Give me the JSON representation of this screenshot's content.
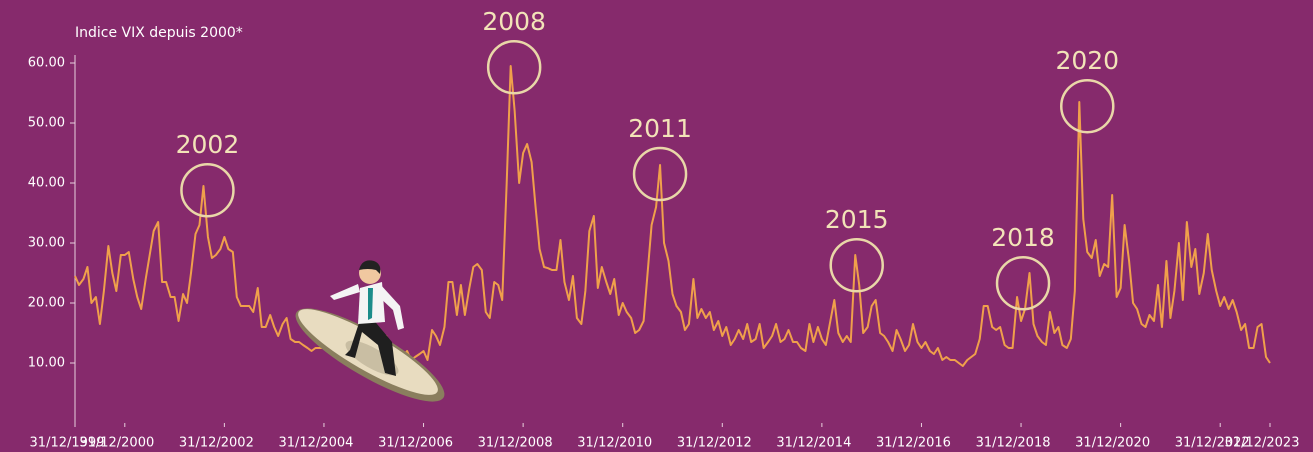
{
  "chart_data": {
    "type": "line",
    "title": "Indice VIX depuis 2000*",
    "color": "#f0a04b",
    "xlim": [
      2000,
      2024
    ],
    "ylim": [
      0,
      60
    ],
    "xticks": [
      {
        "value": 2000,
        "label": "31/12/1999"
      },
      {
        "value": 2001,
        "label": "31/12/2000"
      },
      {
        "value": 2003,
        "label": "31/12/2002"
      },
      {
        "value": 2005,
        "label": "31/12/2004"
      },
      {
        "value": 2007,
        "label": "31/12/2006"
      },
      {
        "value": 2009,
        "label": "31/12/2008"
      },
      {
        "value": 2011,
        "label": "31/12/2010"
      },
      {
        "value": 2013,
        "label": "31/12/2012"
      },
      {
        "value": 2015,
        "label": "31/12/2014"
      },
      {
        "value": 2017,
        "label": "31/12/2016"
      },
      {
        "value": 2019,
        "label": "31/12/2018"
      },
      {
        "value": 2021,
        "label": "31/12/2020"
      },
      {
        "value": 2023,
        "label": "31/12/2022"
      },
      {
        "value": 2024,
        "label": "31/12/2023"
      }
    ],
    "yticks": [
      {
        "value": 10,
        "label": "10.00"
      },
      {
        "value": 20,
        "label": "20.00"
      },
      {
        "value": 30,
        "label": "30.00"
      },
      {
        "value": 40,
        "label": "40.00"
      },
      {
        "value": 50,
        "label": "50.00"
      },
      {
        "value": 60,
        "label": "60.00"
      }
    ],
    "annotations": [
      {
        "text": "2002",
        "x": 2002.66,
        "y": 38.8
      },
      {
        "text": "2008",
        "x": 2008.82,
        "y": 59.3
      },
      {
        "text": "2011",
        "x": 2011.75,
        "y": 41.5
      },
      {
        "text": "2015",
        "x": 2015.7,
        "y": 26.3
      },
      {
        "text": "2018",
        "x": 2019.04,
        "y": 23.3
      },
      {
        "text": "2020",
        "x": 2020.33,
        "y": 52.8
      }
    ],
    "x": [
      2000,
      2000.08,
      2000.17,
      2000.25,
      2000.33,
      2000.42,
      2000.5,
      2000.58,
      2000.67,
      2000.75,
      2000.83,
      2000.92,
      2001,
      2001.08,
      2001.17,
      2001.25,
      2001.33,
      2001.42,
      2001.5,
      2001.58,
      2001.67,
      2001.75,
      2001.83,
      2001.92,
      2002,
      2002.08,
      2002.17,
      2002.25,
      2002.33,
      2002.42,
      2002.5,
      2002.58,
      2002.67,
      2002.75,
      2002.83,
      2002.92,
      2003,
      2003.08,
      2003.17,
      2003.25,
      2003.33,
      2003.42,
      2003.5,
      2003.58,
      2003.67,
      2003.75,
      2003.83,
      2003.92,
      2004,
      2004.08,
      2004.17,
      2004.25,
      2004.33,
      2004.42,
      2004.5,
      2004.58,
      2004.67,
      2004.75,
      2004.83,
      2004.92,
      2005,
      2005.08,
      2005.17,
      2005.25,
      2005.33,
      2005.42,
      2005.5,
      2005.58,
      2005.67,
      2005.75,
      2005.83,
      2005.92,
      2006,
      2006.08,
      2006.17,
      2006.25,
      2006.33,
      2006.42,
      2006.5,
      2006.58,
      2006.67,
      2006.75,
      2006.83,
      2006.92,
      2007,
      2007.08,
      2007.17,
      2007.25,
      2007.33,
      2007.42,
      2007.5,
      2007.58,
      2007.67,
      2007.75,
      2007.83,
      2007.92,
      2008,
      2008.08,
      2008.17,
      2008.25,
      2008.33,
      2008.42,
      2008.5,
      2008.58,
      2008.67,
      2008.75,
      2008.83,
      2008.92,
      2009,
      2009.08,
      2009.17,
      2009.25,
      2009.33,
      2009.42,
      2009.5,
      2009.58,
      2009.67,
      2009.75,
      2009.83,
      2009.92,
      2010,
      2010.08,
      2010.17,
      2010.25,
      2010.33,
      2010.42,
      2010.5,
      2010.58,
      2010.67,
      2010.75,
      2010.83,
      2010.92,
      2011,
      2011.08,
      2011.17,
      2011.25,
      2011.33,
      2011.42,
      2011.5,
      2011.58,
      2011.67,
      2011.75,
      2011.83,
      2011.92,
      2012,
      2012.08,
      2012.17,
      2012.25,
      2012.33,
      2012.42,
      2012.5,
      2012.58,
      2012.67,
      2012.75,
      2012.83,
      2012.92,
      2013,
      2013.08,
      2013.17,
      2013.25,
      2013.33,
      2013.42,
      2013.5,
      2013.58,
      2013.67,
      2013.75,
      2013.83,
      2013.92,
      2014,
      2014.08,
      2014.17,
      2014.25,
      2014.33,
      2014.42,
      2014.5,
      2014.58,
      2014.67,
      2014.75,
      2014.83,
      2014.92,
      2015,
      2015.08,
      2015.17,
      2015.25,
      2015.33,
      2015.42,
      2015.5,
      2015.58,
      2015.67,
      2015.75,
      2015.83,
      2015.92,
      2016,
      2016.08,
      2016.17,
      2016.25,
      2016.33,
      2016.42,
      2016.5,
      2016.58,
      2016.67,
      2016.75,
      2016.83,
      2016.92,
      2017,
      2017.08,
      2017.17,
      2017.25,
      2017.33,
      2017.42,
      2017.5,
      2017.58,
      2017.67,
      2017.75,
      2017.83,
      2017.92,
      2018,
      2018.08,
      2018.17,
      2018.25,
      2018.33,
      2018.42,
      2018.5,
      2018.58,
      2018.67,
      2018.75,
      2018.83,
      2018.92,
      2019,
      2019.08,
      2019.17,
      2019.25,
      2019.33,
      2019.42,
      2019.5,
      2019.58,
      2019.67,
      2019.75,
      2019.83,
      2019.92,
      2020,
      2020.08,
      2020.17,
      2020.25,
      2020.33,
      2020.42,
      2020.5,
      2020.58,
      2020.67,
      2020.75,
      2020.83,
      2020.92,
      2021,
      2021.08,
      2021.17,
      2021.25,
      2021.33,
      2021.42,
      2021.5,
      2021.58,
      2021.67,
      2021.75,
      2021.83,
      2021.92,
      2022,
      2022.08,
      2022.17,
      2022.25,
      2022.33,
      2022.42,
      2022.5,
      2022.58,
      2022.67,
      2022.75,
      2022.83,
      2022.92,
      2023,
      2023.08,
      2023.17,
      2023.25,
      2023.33,
      2023.42,
      2023.5,
      2023.58,
      2023.67,
      2023.75,
      2023.83,
      2023.92,
      2024
    ],
    "values": [
      24.5,
      23,
      24,
      26,
      20,
      21,
      16.5,
      22,
      29.5,
      25,
      22,
      28,
      28,
      28.5,
      24,
      21,
      19,
      24,
      28,
      32,
      33.5,
      23.5,
      23.5,
      21,
      21,
      17,
      21.5,
      20,
      25,
      31.5,
      33,
      39.5,
      31,
      27.5,
      28,
      29,
      31,
      29,
      28.5,
      21,
      19.5,
      19.5,
      19.5,
      18.5,
      22.5,
      16,
      16,
      18,
      16,
      14.5,
      16.5,
      17.5,
      14,
      13.5,
      13.5,
      13,
      12.5,
      12,
      12.5,
      12.5,
      12.5,
      13,
      13,
      13,
      13,
      13,
      13,
      13.5,
      14,
      14,
      14.5,
      15,
      15,
      14,
      13,
      14.5,
      12.5,
      12,
      11.5,
      11,
      12,
      10.5,
      11,
      11.5,
      12,
      10.5,
      15.5,
      14.5,
      13,
      16,
      23.5,
      23.5,
      18,
      23,
      18,
      22.5,
      26,
      26.5,
      25.5,
      18.5,
      17.5,
      23.5,
      23,
      20.5,
      40,
      59.5,
      52,
      40,
      45,
      46.5,
      43.5,
      36,
      29,
      26,
      25.8,
      25.5,
      25.5,
      30.5,
      23.5,
      20.5,
      24.5,
      17.5,
      16.5,
      22,
      32,
      34.5,
      22.5,
      26,
      23.5,
      21.5,
      24,
      18,
      20,
      18.5,
      17.5,
      15,
      15.5,
      17,
      25,
      33,
      36,
      43,
      30,
      27,
      21.5,
      19.5,
      18.5,
      15.5,
      16.5,
      24,
      17.5,
      19,
      17.5,
      18.5,
      15.5,
      17,
      14.5,
      16,
      13,
      14,
      15.5,
      14,
      16.5,
      13.5,
      14,
      16.5,
      12.5,
      13.5,
      14.5,
      16.5,
      13.5,
      14,
      15.5,
      13.5,
      13.5,
      12.5,
      12,
      16.5,
      13.5,
      16,
      14,
      13,
      17,
      20.5,
      15,
      13.5,
      14.5,
      13.5,
      28,
      23,
      15,
      16,
      19.5,
      20.5,
      15,
      14.5,
      13.5,
      12,
      15.5,
      14,
      12,
      13,
      16.5,
      13.5,
      12.5,
      13.5,
      12,
      11.5,
      12.5,
      10.5,
      11,
      10.5,
      10.5,
      10,
      9.5,
      10.5,
      11,
      11.5,
      14,
      19.5,
      19.5,
      16,
      15.5,
      16,
      13,
      12.5,
      12.5,
      21,
      17,
      19,
      25,
      16.5,
      14.5,
      13.5,
      13,
      18.5,
      15,
      16,
      13,
      12.5,
      14,
      22,
      53.5,
      34,
      28.5,
      27.5,
      30.5,
      24.5,
      26.5,
      26,
      38,
      21,
      22.5,
      33,
      27,
      20,
      19,
      16.5,
      16,
      18,
      17,
      23,
      16,
      27,
      17.5,
      22,
      30,
      20.5,
      33.5,
      26,
      29,
      21.5,
      25,
      31.5,
      25.5,
      22,
      19.5,
      21,
      19,
      20.5,
      18.5,
      15.5,
      16.5,
      12.5,
      12.5,
      16,
      16.5,
      11,
      10
    ]
  }
}
